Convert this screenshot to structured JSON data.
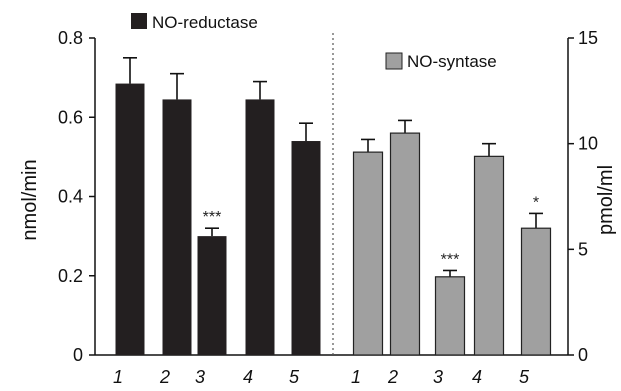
{
  "chart_data": {
    "type": "bar",
    "xlabel": "",
    "left_axis": {
      "label": "nmol/min",
      "ylim": [
        0,
        0.8
      ],
      "ticks": [
        "0",
        "0.2",
        "0.4",
        "0.6",
        "0.8"
      ]
    },
    "right_axis": {
      "label": "pmol/ml",
      "ylim": [
        0,
        15
      ],
      "ticks": [
        "0",
        "5",
        "10",
        "15"
      ]
    },
    "series": [
      {
        "name": "NO-reductase",
        "axis": "left",
        "color": "#231f20",
        "categories": [
          "1",
          "2",
          "3",
          "4",
          "5"
        ],
        "values": [
          0.685,
          0.645,
          0.3,
          0.645,
          0.54
        ],
        "errors": [
          0.065,
          0.065,
          0.02,
          0.045,
          0.045
        ],
        "annotations": [
          "",
          "",
          "***",
          "",
          ""
        ]
      },
      {
        "name": "NO-syntase",
        "axis": "right",
        "color": "#a0a0a0",
        "categories": [
          "1",
          "2",
          "3",
          "4",
          "5"
        ],
        "values": [
          9.6,
          10.5,
          3.7,
          9.4,
          6.0
        ],
        "errors": [
          0.6,
          0.6,
          0.3,
          0.6,
          0.7
        ],
        "annotations": [
          "",
          "",
          "***",
          "",
          "*"
        ]
      }
    ],
    "divider": "dotted"
  }
}
